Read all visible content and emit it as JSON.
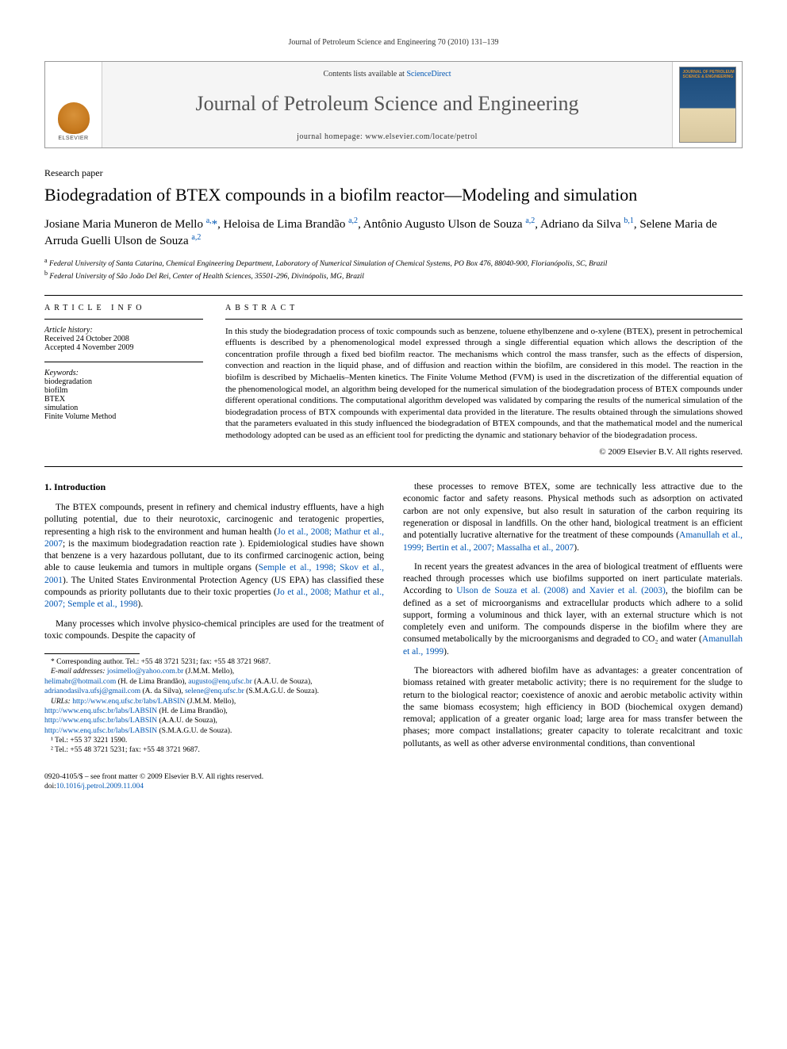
{
  "running_header": "Journal of Petroleum Science and Engineering 70 (2010) 131–139",
  "banner": {
    "contents_prefix": "Contents lists available at ",
    "contents_link": "ScienceDirect",
    "journal_title": "Journal of Petroleum Science and Engineering",
    "homepage_prefix": "journal homepage: ",
    "homepage_url": "www.elsevier.com/locate/petrol",
    "publisher_label": "ELSEVIER",
    "cover_title": "JOURNAL OF PETROLEUM SCIENCE & ENGINEERING"
  },
  "article_type": "Research paper",
  "title": "Biodegradation of BTEX compounds in a biofilm reactor—Modeling and simulation",
  "authors_html": "Josiane Maria Muneron de Mello <sup>a,</sup><span class=\"au-link\">*</span>, Heloisa de Lima Brandão <sup>a,2</sup>, Antônio Augusto Ulson de Souza <sup>a,2</sup>, Adriano da Silva <sup>b,1</sup>, Selene Maria de Arruda Guelli Ulson de Souza <sup>a,2</sup>",
  "affiliations": {
    "a": "Federal University of Santa Catarina, Chemical Engineering Department, Laboratory of Numerical Simulation of Chemical Systems, PO Box 476, 88040-900, Florianópolis, SC, Brazil",
    "b": "Federal University of São João Del Rei, Center of Health Sciences, 35501-296, Divinópolis, MG, Brazil"
  },
  "article_info": {
    "heading": "ARTICLE INFO",
    "history_label": "Article history:",
    "received": "Received 24 October 2008",
    "accepted": "Accepted 4 November 2009",
    "keywords_label": "Keywords:",
    "keywords": [
      "biodegradation",
      "biofilm",
      "BTEX",
      "simulation",
      "Finite Volume Method"
    ]
  },
  "abstract": {
    "heading": "ABSTRACT",
    "text": "In this study the biodegradation process of toxic compounds such as benzene, toluene ethylbenzene and o-xylene (BTEX), present in petrochemical effluents is described by a phenomenological model expressed through a single differential equation which allows the description of the concentration profile through a fixed bed biofilm reactor. The mechanisms which control the mass transfer, such as the effects of dispersion, convection and reaction in the liquid phase, and of diffusion and reaction within the biofilm, are considered in this model. The reaction in the biofilm is described by Michaelis–Menten kinetics. The Finite Volume Method (FVM) is used in the discretization of the differential equation of the phenomenological model, an algorithm being developed for the numerical simulation of the biodegradation process of BTEX compounds under different operational conditions. The computational algorithm developed was validated by comparing the results of the numerical simulation of the biodegradation process of BTX compounds with experimental data provided in the literature. The results obtained through the simulations showed that the parameters evaluated in this study influenced the biodegradation of BTEX compounds, and that the mathematical model and the numerical methodology adopted can be used as an efficient tool for predicting the dynamic and stationary behavior of the biodegradation process.",
    "copyright": "© 2009 Elsevier B.V. All rights reserved."
  },
  "body": {
    "section_title": "1. Introduction",
    "p1": "The BTEX compounds, present in refinery and chemical industry effluents, have a high polluting potential, due to their neurotoxic, carcinogenic and teratogenic properties, representing a high risk to the environment and human health (",
    "p1_cite1": "Jo et al., 2008; Mathur et al., 2007",
    "p1b": "; is the maximum biodegradation reaction rate ). Epidemiological studies have shown that benzene is a very hazardous pollutant, due to its confirmed carcinogenic action, being able to cause leukemia and tumors in multiple organs (",
    "p1_cite2": "Semple et al., 1998; Skov et al., 2001",
    "p1c": "). The United States Environmental Protection Agency (US EPA) has classified these compounds as priority pollutants due to their toxic properties (",
    "p1_cite3": "Jo et al., 2008; Mathur et al., 2007; Semple et al., 1998",
    "p1d": ").",
    "p2": "Many processes which involve physico-chemical principles are used for the treatment of toxic compounds. Despite the capacity of",
    "p3": "these processes to remove BTEX, some are technically less attractive due to the economic factor and safety reasons. Physical methods such as adsorption on activated carbon are not only expensive, but also result in saturation of the carbon requiring its regeneration or disposal in landfills. On the other hand, biological treatment is an efficient and potentially lucrative alternative for the treatment of these compounds (",
    "p3_cite": "Amanullah et al., 1999; Bertin et al., 2007; Massalha et al., 2007",
    "p3b": ").",
    "p4": "In recent years the greatest advances in the area of biological treatment of effluents were reached through processes which use biofilms supported on inert particulate materials. According to ",
    "p4_cite": "Ulson de Souza et al. (2008) and Xavier et al. (2003)",
    "p4b": ", the biofilm can be defined as a set of microorganisms and extracellular products which adhere to a solid support, forming a voluminous and thick layer, with an external structure which is not completely even and uniform. The compounds disperse in the biofilm where they are consumed metabolically by the microorganisms and degraded to CO₂ and water (",
    "p4_cite2": "Amanullah et al., 1999",
    "p4c": ").",
    "p5": "The bioreactors with adhered biofilm have as advantages: a greater concentration of biomass retained with greater metabolic activity; there is no requirement for the sludge to return to the biological reactor; coexistence of anoxic and aerobic metabolic activity within the same biomass ecosystem; high efficiency in BOD (biochemical oxygen demand) removal; application of a greater organic load; large area for mass transfer between the phases; more compact installations; greater capacity to tolerate recalcitrant and toxic pollutants, as well as other adverse environmental conditions, than conventional"
  },
  "footnotes": {
    "corr_label": "* Corresponding author. Tel.: +55 48 3721 5231; fax: +55 48 3721 9687.",
    "email_label": "E-mail addresses:",
    "emails": [
      {
        "addr": "josimello@yahoo.com.br",
        "who": "(J.M.M. Mello),"
      },
      {
        "addr": "helimabr@hotmail.com",
        "who": "(H. de Lima Brandão),"
      },
      {
        "addr": "augusto@enq.ufsc.br",
        "who": "(A.A.U. de Souza),"
      },
      {
        "addr": "adrianodasilva.ufsj@gmail.com",
        "who": "(A. da Silva),"
      },
      {
        "addr": "selene@enq.ufsc.br",
        "who": "(S.M.A.G.U. de Souza)."
      }
    ],
    "urls_label": "URLs:",
    "urls": [
      {
        "url": "http://www.enq.ufsc.br/labs/LABSIN",
        "who": "(J.M.M. Mello),"
      },
      {
        "url": "http://www.enq.ufsc.br/labs/LABSIN",
        "who": "(H. de Lima Brandão),"
      },
      {
        "url": "http://www.enq.ufsc.br/labs/LABSIN",
        "who": "(A.A.U. de Souza),"
      },
      {
        "url": "http://www.enq.ufsc.br/labs/LABSIN",
        "who": "(S.M.A.G.U. de Souza)."
      }
    ],
    "tel1": "¹ Tel.: +55 37 3221 1590.",
    "tel2": "² Tel.: +55 48 3721 5231; fax: +55 48 3721 9687."
  },
  "footer": {
    "line1": "0920-4105/$ – see front matter © 2009 Elsevier B.V. All rights reserved.",
    "doi_label": "doi:",
    "doi": "10.1016/j.petrol.2009.11.004"
  },
  "colors": {
    "link": "#0056b3",
    "text": "#000000",
    "banner_bg": "#f5f5f5",
    "border": "#999999"
  }
}
